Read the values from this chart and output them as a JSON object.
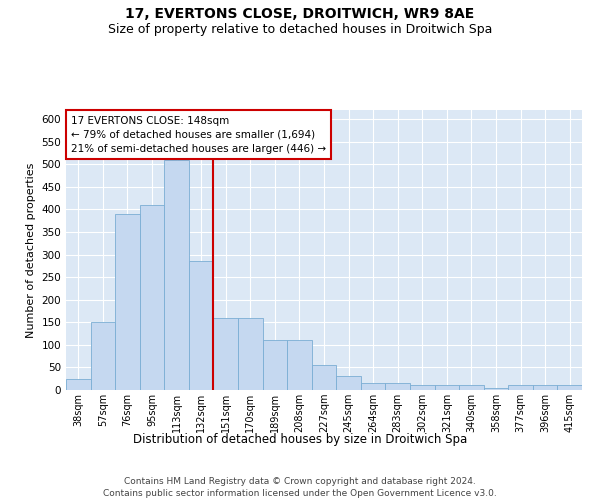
{
  "title1": "17, EVERTONS CLOSE, DROITWICH, WR9 8AE",
  "title2": "Size of property relative to detached houses in Droitwich Spa",
  "xlabel": "Distribution of detached houses by size in Droitwich Spa",
  "ylabel": "Number of detached properties",
  "annotation_text": "17 EVERTONS CLOSE: 148sqm\n← 79% of detached houses are smaller (1,694)\n21% of semi-detached houses are larger (446) →",
  "bar_categories": [
    "38sqm",
    "57sqm",
    "76sqm",
    "95sqm",
    "113sqm",
    "132sqm",
    "151sqm",
    "170sqm",
    "189sqm",
    "208sqm",
    "227sqm",
    "245sqm",
    "264sqm",
    "283sqm",
    "302sqm",
    "321sqm",
    "340sqm",
    "358sqm",
    "377sqm",
    "396sqm",
    "415sqm"
  ],
  "bar_values": [
    25,
    150,
    390,
    410,
    510,
    285,
    160,
    160,
    110,
    110,
    55,
    30,
    15,
    15,
    10,
    10,
    10,
    5,
    10,
    10,
    10
  ],
  "bar_color": "#c5d8f0",
  "bar_edgecolor": "#7aadd4",
  "background_color": "#dce8f5",
  "vline_color": "#cc0000",
  "vline_x_index": 6,
  "ylim": [
    0,
    620
  ],
  "yticks": [
    0,
    50,
    100,
    150,
    200,
    250,
    300,
    350,
    400,
    450,
    500,
    550,
    600
  ],
  "annotation_box_facecolor": "white",
  "annotation_box_edgecolor": "#cc0000",
  "footer_text": "Contains HM Land Registry data © Crown copyright and database right 2024.\nContains public sector information licensed under the Open Government Licence v3.0.",
  "title1_fontsize": 10,
  "title2_fontsize": 9,
  "xlabel_fontsize": 8.5,
  "ylabel_fontsize": 8,
  "annotation_fontsize": 7.5,
  "footer_fontsize": 6.5
}
